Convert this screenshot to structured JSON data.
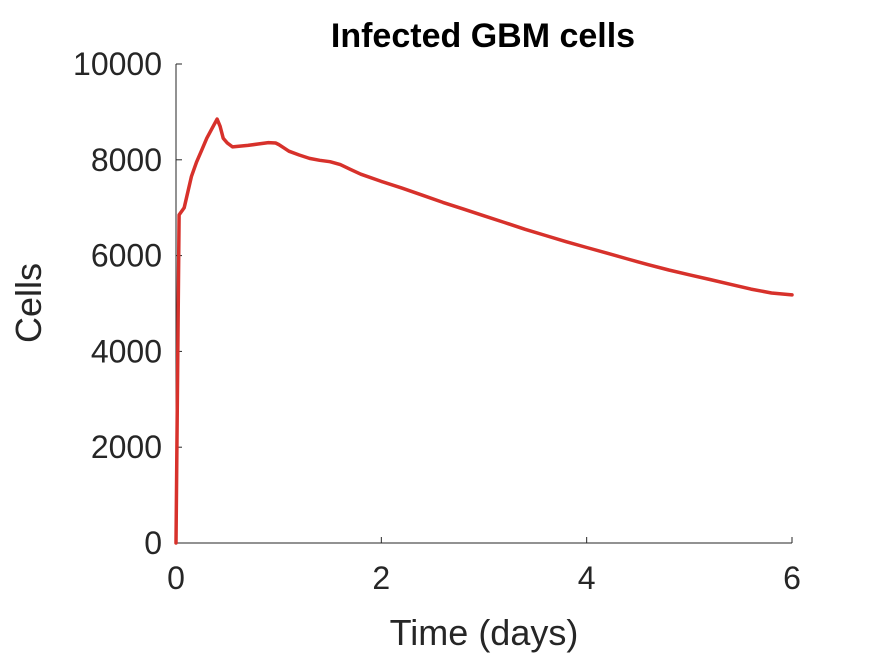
{
  "chart_data": {
    "type": "line",
    "title": "Infected GBM cells",
    "xlabel": "Time (days)",
    "ylabel": "Cells",
    "xlim": [
      0,
      6
    ],
    "ylim": [
      0,
      10000
    ],
    "xticks": [
      0,
      2,
      4,
      6
    ],
    "yticks": [
      0,
      2000,
      4000,
      6000,
      8000,
      10000
    ],
    "grid": false,
    "colors": {
      "line": "#d7312b",
      "axis": "#262626"
    },
    "series": [
      {
        "x": [
          0,
          0.03,
          0.08,
          0.15,
          0.2,
          0.25,
          0.3,
          0.35,
          0.4,
          0.43,
          0.46,
          0.5,
          0.55,
          0.6,
          0.7,
          0.8,
          0.9,
          0.97,
          1.0,
          1.05,
          1.1,
          1.2,
          1.3,
          1.4,
          1.5,
          1.6,
          1.7,
          1.8,
          2.0,
          2.2,
          2.4,
          2.6,
          2.8,
          3.0,
          3.2,
          3.4,
          3.6,
          3.8,
          4.0,
          4.2,
          4.4,
          4.6,
          4.8,
          5.0,
          5.2,
          5.4,
          5.6,
          5.8,
          6.0
        ],
        "y": [
          0,
          6850,
          7000,
          7650,
          7950,
          8200,
          8450,
          8650,
          8850,
          8700,
          8450,
          8350,
          8270,
          8280,
          8300,
          8330,
          8360,
          8350,
          8320,
          8250,
          8180,
          8100,
          8030,
          7990,
          7960,
          7900,
          7800,
          7700,
          7550,
          7410,
          7260,
          7110,
          6970,
          6830,
          6690,
          6550,
          6420,
          6290,
          6170,
          6050,
          5930,
          5810,
          5700,
          5600,
          5500,
          5400,
          5300,
          5220,
          5180
        ]
      }
    ]
  }
}
